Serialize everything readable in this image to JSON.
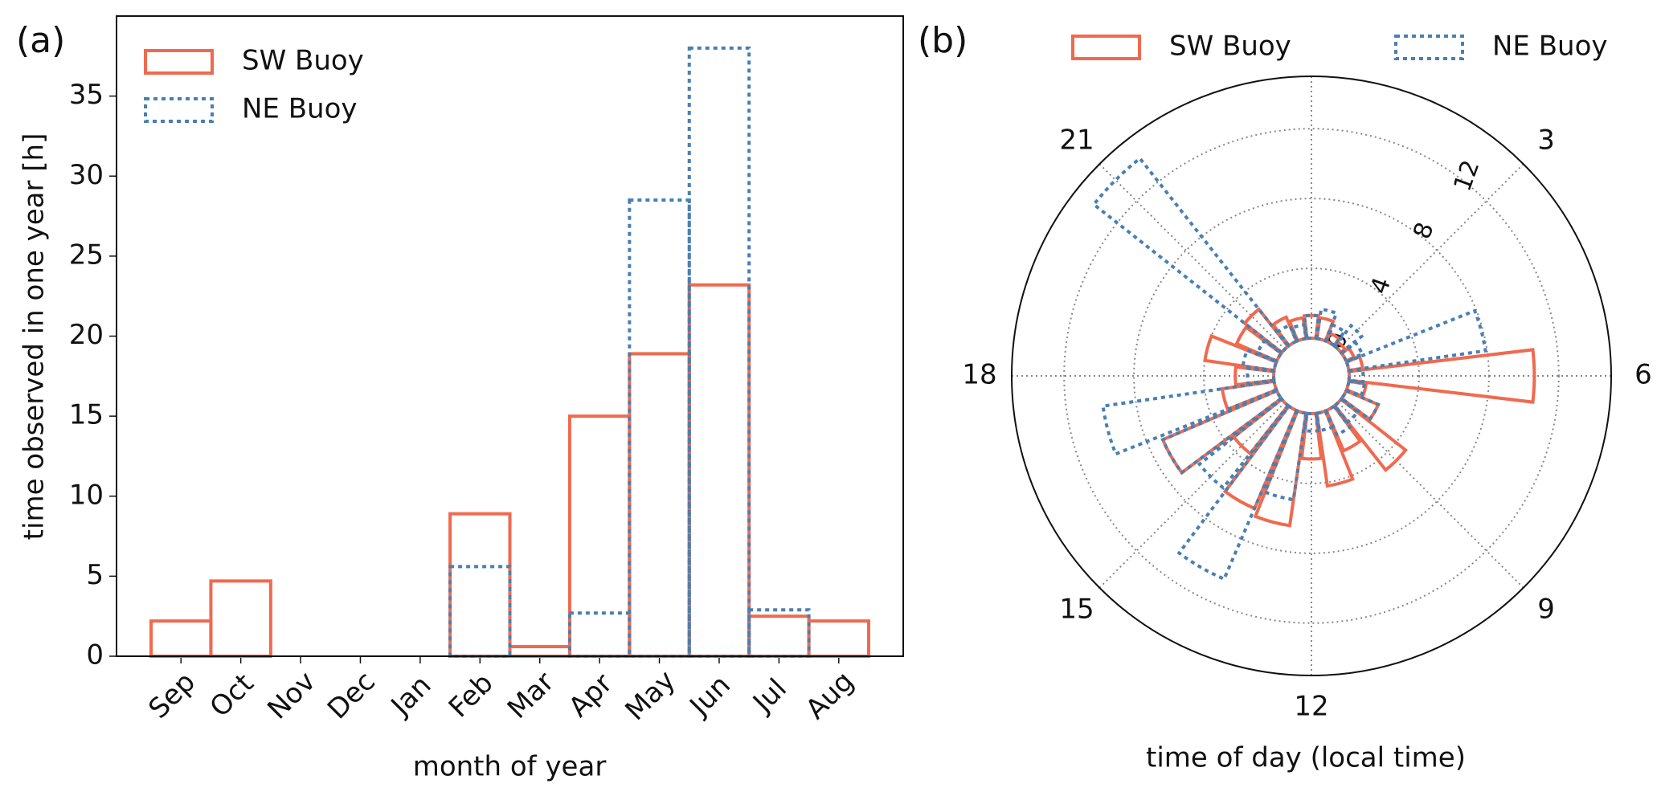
{
  "chart_data": [
    {
      "type": "bar",
      "panel_label": "(a)",
      "x_label": "month of year",
      "y_label": "time observed in one year [h]",
      "categories": [
        "Sep",
        "Oct",
        "Nov",
        "Dec",
        "Jan",
        "Feb",
        "Mar",
        "Apr",
        "May",
        "Jun",
        "Jul",
        "Aug"
      ],
      "series": [
        {
          "name": "SW Buoy",
          "color": "#ef6a4f",
          "style": "solid",
          "values": [
            2.2,
            4.7,
            0,
            0,
            0,
            8.9,
            0.6,
            15.0,
            18.9,
            23.2,
            2.5,
            2.2
          ]
        },
        {
          "name": "NE Buoy",
          "color": "#4a7fb1",
          "style": "dotted",
          "values": [
            0,
            0,
            0,
            0,
            0,
            5.6,
            0,
            2.7,
            28.5,
            38.0,
            2.9,
            0
          ]
        }
      ],
      "ylim": [
        0,
        40
      ],
      "yticks": [
        0,
        5,
        10,
        15,
        20,
        25,
        30,
        35
      ],
      "legend": "upper left"
    },
    {
      "type": "polar_bar",
      "panel_label": "(b)",
      "x_label": "time of day (local time)",
      "x": [
        0,
        1,
        2,
        3,
        4,
        5,
        6,
        7,
        8,
        9,
        10,
        11,
        12,
        13,
        14,
        15,
        16,
        17,
        18,
        19,
        20,
        21,
        22,
        23
      ],
      "xlim": [
        0,
        24
      ],
      "xticks": [
        3,
        6,
        9,
        12,
        15,
        18,
        21
      ],
      "rlim": [
        0,
        15
      ],
      "rticks": [
        0,
        4,
        8,
        12
      ],
      "series": [
        {
          "name": "SW Buoy",
          "color": "#ef6a4f",
          "style": "solid",
          "values": [
            1.3,
            1.2,
            0.5,
            0.3,
            0.5,
            0.8,
            10.6,
            1.0,
            2.0,
            4.7,
            2.5,
            4.2,
            2.6,
            6.5,
            6.1,
            3.5,
            7.1,
            3.0,
            2.2,
            4.0,
            2.5,
            2.7,
            1.5,
            1.2
          ]
        },
        {
          "name": "NE Buoy",
          "color": "#4a7fb1",
          "style": "dotted",
          "values": [
            1.3,
            1.7,
            1.0,
            1.5,
            1.0,
            7.9,
            0.8,
            0.9,
            2.0,
            1.2,
            1.5,
            1.0,
            1.0,
            5.0,
            10.5,
            6.0,
            7.1,
            9.9,
            1.5,
            1.8,
            1.2,
            13.7,
            1.0,
            0.8
          ]
        }
      ],
      "legend": "upper center",
      "grid": true
    }
  ]
}
